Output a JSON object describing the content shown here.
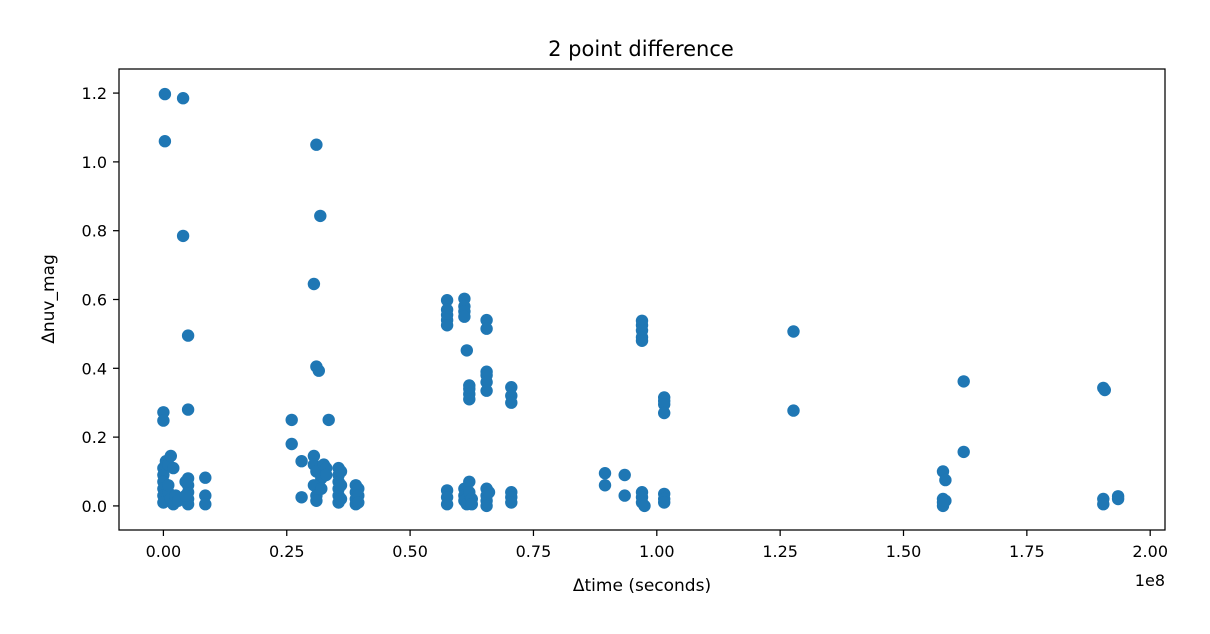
{
  "chart_data": {
    "type": "scatter",
    "title": "2 point difference",
    "xlabel": "Δtime (seconds)",
    "ylabel": "Δnuv_mag",
    "x_offset_label": "1e8",
    "x_scale": 100000000,
    "xlim": [
      -0.09,
      2.03
    ],
    "ylim": [
      -0.07,
      1.27
    ],
    "x_ticks": [
      0.0,
      0.25,
      0.5,
      0.75,
      1.0,
      1.25,
      1.5,
      1.75,
      2.0
    ],
    "x_tick_labels": [
      "0.00",
      "0.25",
      "0.50",
      "0.75",
      "1.00",
      "1.25",
      "1.50",
      "1.75",
      "2.00"
    ],
    "y_ticks": [
      0.0,
      0.2,
      0.4,
      0.6,
      0.8,
      1.0,
      1.2
    ],
    "y_tick_labels": [
      "0.0",
      "0.2",
      "0.4",
      "0.6",
      "0.8",
      "1.0",
      "1.2"
    ],
    "grid": false,
    "marker_color": "#1f77b4",
    "series": [
      {
        "points": [
          [
            0.003,
            1.197
          ],
          [
            0.04,
            1.185
          ],
          [
            0.003,
            1.06
          ],
          [
            0.04,
            0.785
          ],
          [
            0.05,
            0.495
          ],
          [
            0.05,
            0.28
          ],
          [
            0.0,
            0.272
          ],
          [
            0.0,
            0.248
          ],
          [
            0.0,
            0.11
          ],
          [
            0.0,
            0.09
          ],
          [
            0.0,
            0.07
          ],
          [
            0.0,
            0.05
          ],
          [
            0.0,
            0.03
          ],
          [
            0.0,
            0.01
          ],
          [
            0.005,
            0.13
          ],
          [
            0.01,
            0.12
          ],
          [
            0.015,
            0.145
          ],
          [
            0.02,
            0.11
          ],
          [
            0.01,
            0.04
          ],
          [
            0.015,
            0.02
          ],
          [
            0.02,
            0.005
          ],
          [
            0.025,
            0.03
          ],
          [
            0.03,
            0.015
          ],
          [
            0.01,
            0.06
          ],
          [
            0.05,
            0.08
          ],
          [
            0.05,
            0.06
          ],
          [
            0.05,
            0.04
          ],
          [
            0.05,
            0.02
          ],
          [
            0.05,
            0.005
          ],
          [
            0.045,
            0.07
          ],
          [
            0.045,
            0.03
          ],
          [
            0.085,
            0.082
          ],
          [
            0.085,
            0.03
          ],
          [
            0.085,
            0.005
          ],
          [
            0.31,
            1.05
          ],
          [
            0.318,
            0.843
          ],
          [
            0.305,
            0.645
          ],
          [
            0.31,
            0.405
          ],
          [
            0.315,
            0.393
          ],
          [
            0.26,
            0.25
          ],
          [
            0.26,
            0.18
          ],
          [
            0.335,
            0.25
          ],
          [
            0.28,
            0.13
          ],
          [
            0.305,
            0.145
          ],
          [
            0.305,
            0.12
          ],
          [
            0.31,
            0.1
          ],
          [
            0.32,
            0.08
          ],
          [
            0.325,
            0.12
          ],
          [
            0.33,
            0.11
          ],
          [
            0.33,
            0.09
          ],
          [
            0.305,
            0.06
          ],
          [
            0.31,
            0.03
          ],
          [
            0.31,
            0.015
          ],
          [
            0.28,
            0.025
          ],
          [
            0.32,
            0.05
          ],
          [
            0.355,
            0.11
          ],
          [
            0.355,
            0.09
          ],
          [
            0.355,
            0.07
          ],
          [
            0.355,
            0.05
          ],
          [
            0.355,
            0.03
          ],
          [
            0.355,
            0.01
          ],
          [
            0.36,
            0.1
          ],
          [
            0.36,
            0.06
          ],
          [
            0.36,
            0.02
          ],
          [
            0.39,
            0.06
          ],
          [
            0.39,
            0.04
          ],
          [
            0.39,
            0.02
          ],
          [
            0.39,
            0.005
          ],
          [
            0.395,
            0.05
          ],
          [
            0.395,
            0.03
          ],
          [
            0.395,
            0.01
          ],
          [
            0.575,
            0.598
          ],
          [
            0.575,
            0.57
          ],
          [
            0.575,
            0.555
          ],
          [
            0.575,
            0.54
          ],
          [
            0.575,
            0.525
          ],
          [
            0.61,
            0.602
          ],
          [
            0.61,
            0.58
          ],
          [
            0.61,
            0.565
          ],
          [
            0.61,
            0.55
          ],
          [
            0.615,
            0.452
          ],
          [
            0.62,
            0.35
          ],
          [
            0.62,
            0.34
          ],
          [
            0.62,
            0.325
          ],
          [
            0.62,
            0.31
          ],
          [
            0.655,
            0.54
          ],
          [
            0.655,
            0.515
          ],
          [
            0.655,
            0.39
          ],
          [
            0.655,
            0.38
          ],
          [
            0.655,
            0.36
          ],
          [
            0.655,
            0.335
          ],
          [
            0.705,
            0.345
          ],
          [
            0.705,
            0.32
          ],
          [
            0.705,
            0.3
          ],
          [
            0.575,
            0.045
          ],
          [
            0.575,
            0.025
          ],
          [
            0.575,
            0.005
          ],
          [
            0.61,
            0.05
          ],
          [
            0.61,
            0.03
          ],
          [
            0.61,
            0.015
          ],
          [
            0.615,
            0.005
          ],
          [
            0.62,
            0.07
          ],
          [
            0.62,
            0.04
          ],
          [
            0.625,
            0.02
          ],
          [
            0.625,
            0.005
          ],
          [
            0.655,
            0.05
          ],
          [
            0.655,
            0.03
          ],
          [
            0.655,
            0.015
          ],
          [
            0.655,
            0.0
          ],
          [
            0.66,
            0.04
          ],
          [
            0.705,
            0.04
          ],
          [
            0.705,
            0.025
          ],
          [
            0.705,
            0.01
          ],
          [
            0.895,
            0.095
          ],
          [
            0.895,
            0.06
          ],
          [
            0.935,
            0.09
          ],
          [
            0.935,
            0.03
          ],
          [
            0.97,
            0.538
          ],
          [
            0.97,
            0.525
          ],
          [
            0.97,
            0.51
          ],
          [
            0.97,
            0.49
          ],
          [
            0.97,
            0.48
          ],
          [
            0.97,
            0.04
          ],
          [
            0.97,
            0.025
          ],
          [
            0.97,
            0.01
          ],
          [
            0.975,
            0.0
          ],
          [
            1.015,
            0.315
          ],
          [
            1.015,
            0.305
          ],
          [
            1.015,
            0.295
          ],
          [
            1.015,
            0.27
          ],
          [
            1.015,
            0.035
          ],
          [
            1.015,
            0.02
          ],
          [
            1.015,
            0.01
          ],
          [
            1.277,
            0.507
          ],
          [
            1.277,
            0.277
          ],
          [
            1.622,
            0.362
          ],
          [
            1.622,
            0.157
          ],
          [
            1.58,
            0.1
          ],
          [
            1.585,
            0.075
          ],
          [
            1.58,
            0.02
          ],
          [
            1.58,
            0.01
          ],
          [
            1.58,
            0.0
          ],
          [
            1.585,
            0.015
          ],
          [
            1.905,
            0.343
          ],
          [
            1.908,
            0.337
          ],
          [
            1.905,
            0.02
          ],
          [
            1.905,
            0.005
          ],
          [
            1.935,
            0.028
          ],
          [
            1.935,
            0.02
          ]
        ]
      }
    ]
  }
}
